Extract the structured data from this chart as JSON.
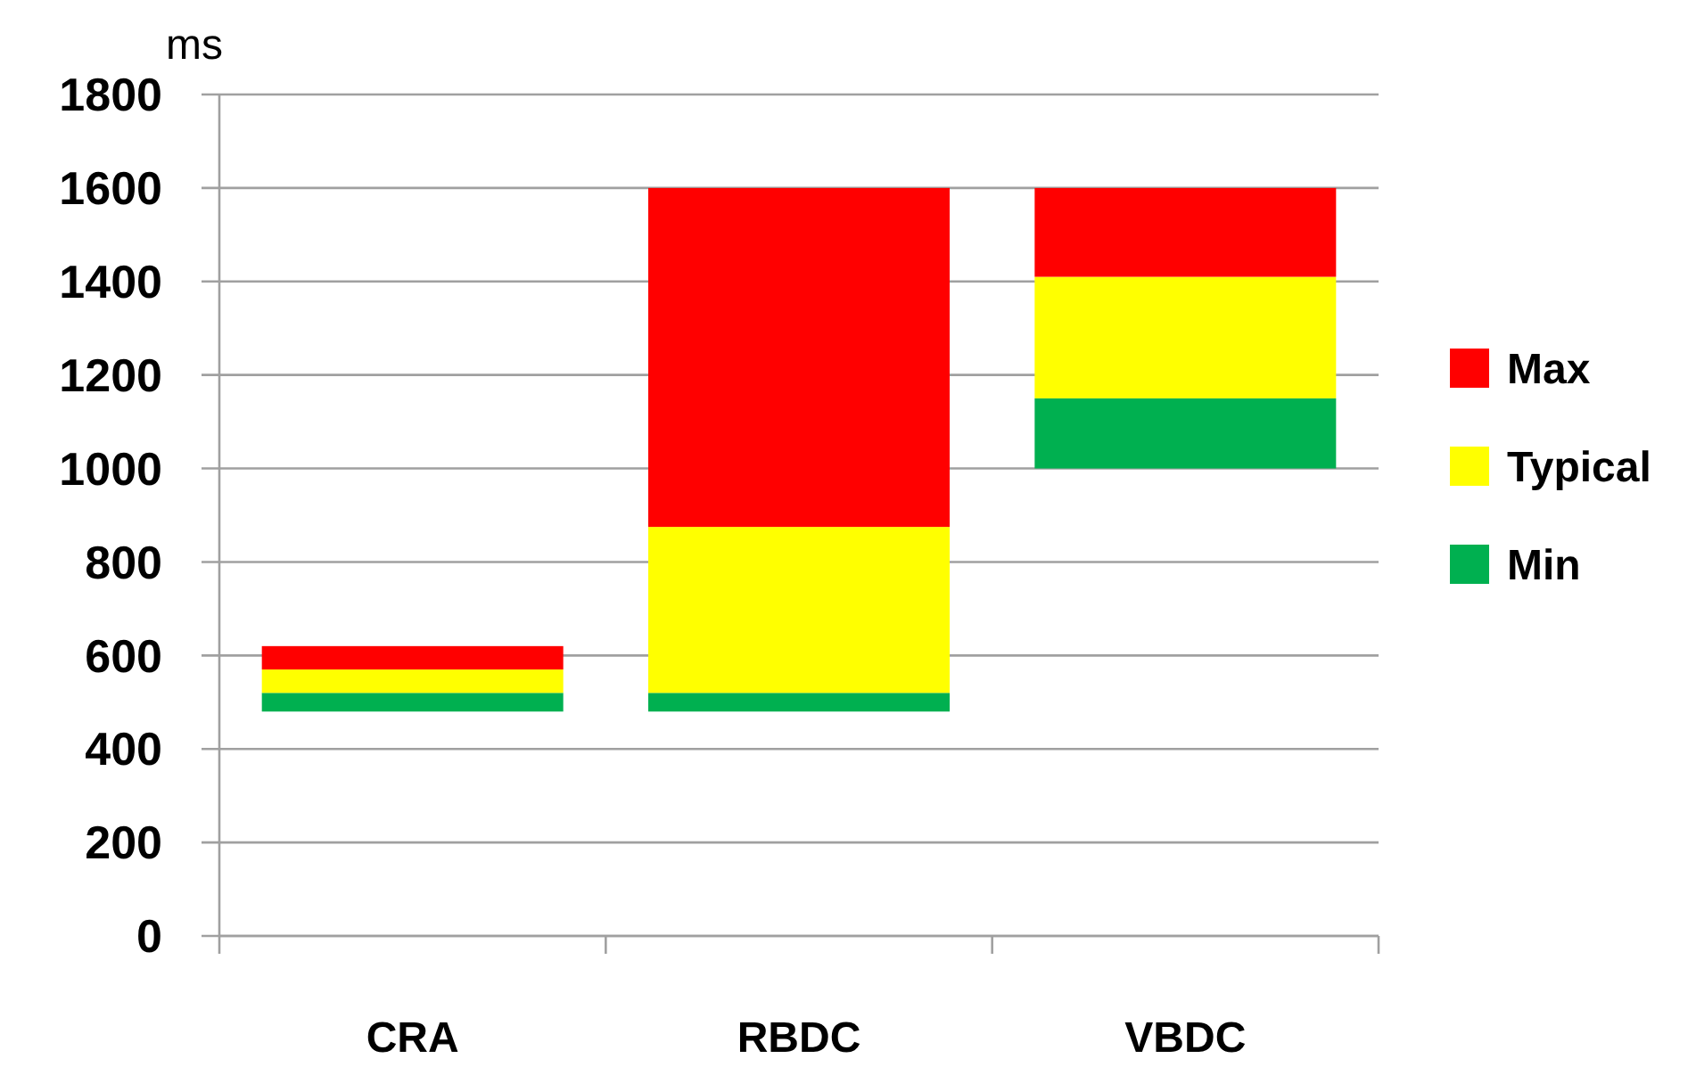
{
  "chart_data": {
    "type": "bar",
    "ylabel": "ms",
    "categories": [
      "CRA",
      "RBDC",
      "VBDC"
    ],
    "series": [
      {
        "name": "Min",
        "color": "#00b050",
        "base": [
          480,
          480,
          1000
        ],
        "values": [
          40,
          40,
          150
        ]
      },
      {
        "name": "Typical",
        "color": "#ffff00",
        "base": [
          520,
          520,
          1150
        ],
        "values": [
          50,
          355,
          260
        ]
      },
      {
        "name": "Max",
        "color": "#ff0000",
        "base": [
          570,
          875,
          1410
        ],
        "values": [
          50,
          725,
          190
        ]
      }
    ],
    "ylim": [
      0,
      1800
    ],
    "yticks": [
      0,
      200,
      400,
      600,
      800,
      1000,
      1200,
      1400,
      1600,
      1800
    ],
    "grid": "y",
    "legend": "right"
  }
}
